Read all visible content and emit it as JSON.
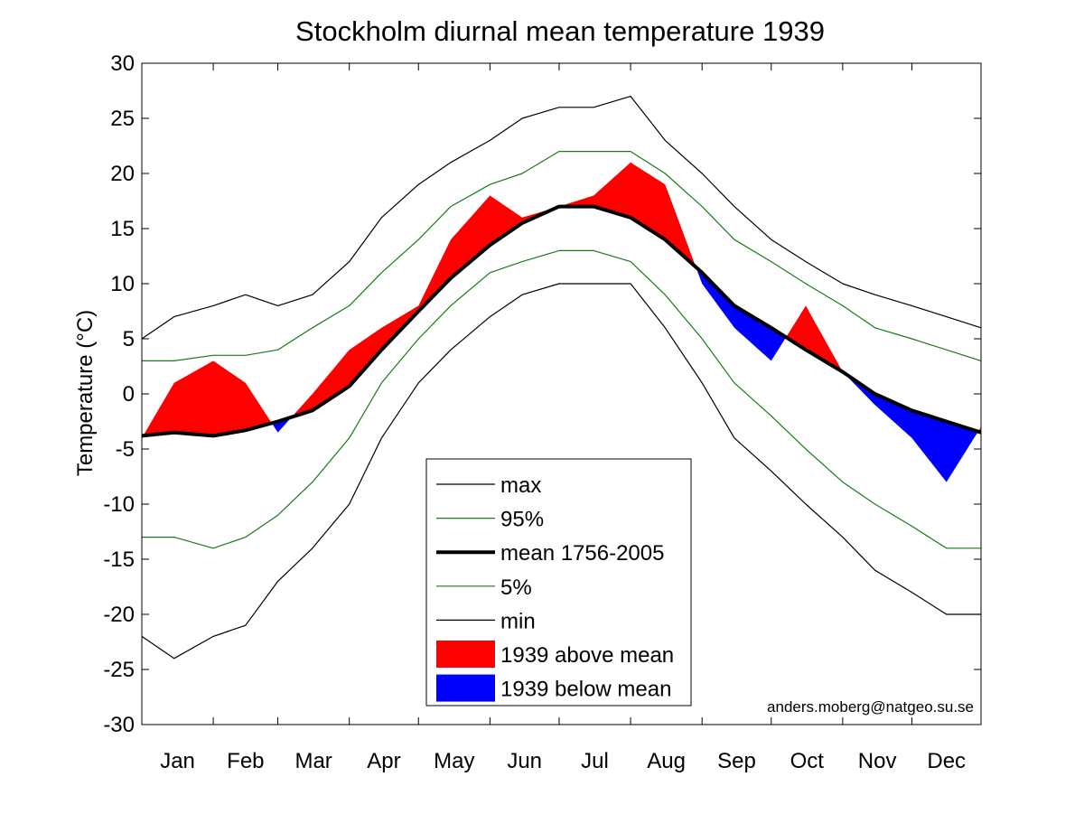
{
  "chart_data": {
    "type": "line",
    "title": "Stockholm diurnal mean temperature 1939",
    "xlabel": "",
    "ylabel": "Temperature (°C)",
    "xlim": [
      1,
      365
    ],
    "ylim": [
      -30,
      30
    ],
    "yticks": [
      30,
      25,
      20,
      15,
      10,
      5,
      0,
      -5,
      -10,
      -15,
      -20,
      -25,
      -30
    ],
    "months": [
      "Jan",
      "Feb",
      "Mar",
      "Apr",
      "May",
      "Jun",
      "Jul",
      "Aug",
      "Sep",
      "Oct",
      "Nov",
      "Dec"
    ],
    "month_start_days": [
      1,
      32,
      60,
      91,
      121,
      152,
      182,
      213,
      244,
      274,
      305,
      335
    ],
    "legend_position": "bottom-center",
    "credit": "anders.moberg@natgeo.su.se",
    "colors": {
      "max": "#000000",
      "p95": "#1a7a1a",
      "mean": "#000000",
      "p5": "#1a7a1a",
      "min": "#000000",
      "above": "#ff0000",
      "below": "#0000ff"
    },
    "days": [
      1,
      15,
      32,
      46,
      60,
      75,
      91,
      105,
      121,
      135,
      152,
      166,
      182,
      197,
      213,
      228,
      244,
      258,
      274,
      289,
      305,
      319,
      335,
      350,
      365
    ],
    "series": [
      {
        "name": "max",
        "key": "max",
        "values": [
          5,
          7,
          8,
          9,
          8,
          9,
          12,
          16,
          19,
          21,
          23,
          25,
          26,
          26,
          27,
          23,
          20,
          17,
          14,
          12,
          10,
          9,
          8,
          7,
          6
        ]
      },
      {
        "name": "95%",
        "key": "p95",
        "values": [
          3,
          3,
          3.5,
          3.5,
          4,
          6,
          8,
          11,
          14,
          17,
          19,
          20,
          22,
          22,
          22,
          20,
          17,
          14,
          12,
          10,
          8,
          6,
          5,
          4,
          3
        ]
      },
      {
        "name": "mean 1756-2005",
        "key": "mean",
        "values": [
          -3.8,
          -3.5,
          -3.8,
          -3.3,
          -2.5,
          -1.5,
          0.7,
          4,
          7.5,
          10.5,
          13.5,
          15.5,
          17,
          17,
          16,
          14,
          11,
          8,
          6,
          4,
          2,
          0,
          -1.5,
          -2.5,
          -3.5
        ]
      },
      {
        "name": "5%",
        "key": "p5",
        "values": [
          -13,
          -13,
          -14,
          -13,
          -11,
          -8,
          -4,
          1,
          5,
          8,
          11,
          12,
          13,
          13,
          12,
          9,
          5,
          1,
          -2,
          -5,
          -8,
          -10,
          -12,
          -14,
          -14
        ]
      },
      {
        "name": "min",
        "key": "min",
        "values": [
          -22,
          -24,
          -22,
          -21,
          -17,
          -14,
          -10,
          -4,
          1,
          4,
          7,
          9,
          10,
          10,
          10,
          6,
          1,
          -4,
          -7,
          -10,
          -13,
          -16,
          -18,
          -20,
          -20
        ]
      },
      {
        "name": "1939",
        "key": "obs",
        "values": [
          -4,
          1,
          3,
          1,
          -3.5,
          0,
          4,
          6,
          8,
          14,
          18,
          16,
          17,
          18,
          21,
          19,
          10,
          6,
          3,
          8,
          2,
          -1,
          -4,
          -8,
          -3
        ]
      }
    ],
    "legend_entries": [
      {
        "key": "max",
        "label": "max"
      },
      {
        "key": "p95",
        "label": "95%"
      },
      {
        "key": "mean",
        "label": "mean 1756-2005"
      },
      {
        "key": "p5",
        "label": "5%"
      },
      {
        "key": "min",
        "label": "min"
      },
      {
        "key": "above",
        "label": "1939 above mean"
      },
      {
        "key": "below",
        "label": "1939 below mean"
      }
    ]
  }
}
